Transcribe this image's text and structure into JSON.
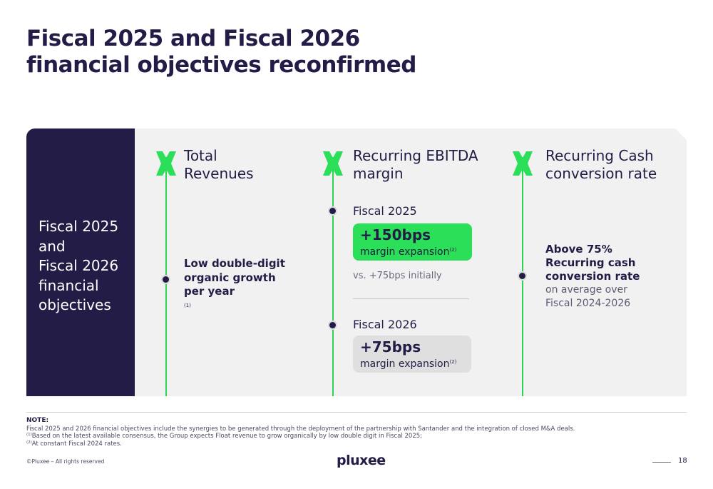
{
  "title": {
    "line1": "Fiscal 2025 and Fiscal 2026",
    "line2": "financial objectives reconfirmed"
  },
  "left_panel": {
    "lines": [
      "Fiscal 2025",
      "and",
      "Fiscal 2026",
      "financial",
      "objectives"
    ]
  },
  "columns": {
    "revenues": {
      "heading": [
        "Total",
        "Revenues"
      ],
      "text": [
        "Low double-digit",
        "organic growth",
        "per year"
      ],
      "sup": "(1)"
    },
    "ebitda": {
      "heading": [
        "Recurring EBITDA",
        "margin"
      ],
      "fy2025": {
        "label": "Fiscal 2025",
        "value": "+150bps",
        "desc": "margin expansion",
        "sup": "(2)",
        "note": "vs. +75bps initially"
      },
      "fy2026": {
        "label": "Fiscal 2026",
        "value": "+75bps",
        "desc": "margin expansion",
        "sup": "(2)"
      }
    },
    "cash": {
      "heading": [
        "Recurring Cash",
        "conversion rate"
      ],
      "bold": [
        "Above 75%",
        "Recurring cash",
        "conversion rate"
      ],
      "normal": [
        "on average over",
        "Fiscal 2024-2026"
      ]
    }
  },
  "footer": {
    "note_title": "NOTE:",
    "note_main": "Fiscal 2025 and 2026 financial objectives include the synergies to be generated through the deployment of the partnership with Santander and the integration of closed M&A deals.",
    "note1_marker": "(1)",
    "note1": "Based on the latest available consensus, the Group expects Float revenue to grow organically by low double digit in Fiscal 2025;",
    "note2_marker": "(2)",
    "note2": "At constant Fiscal 2024 rates.",
    "copyright": "©Pluxee – All rights reserved",
    "logo": "pluxee",
    "page": "18"
  },
  "colors": {
    "navy": "#221c46",
    "green": "#2bdf59",
    "panel_grey": "#f1f1f1"
  },
  "icons": {
    "column_marker": "x-cross-icon"
  }
}
